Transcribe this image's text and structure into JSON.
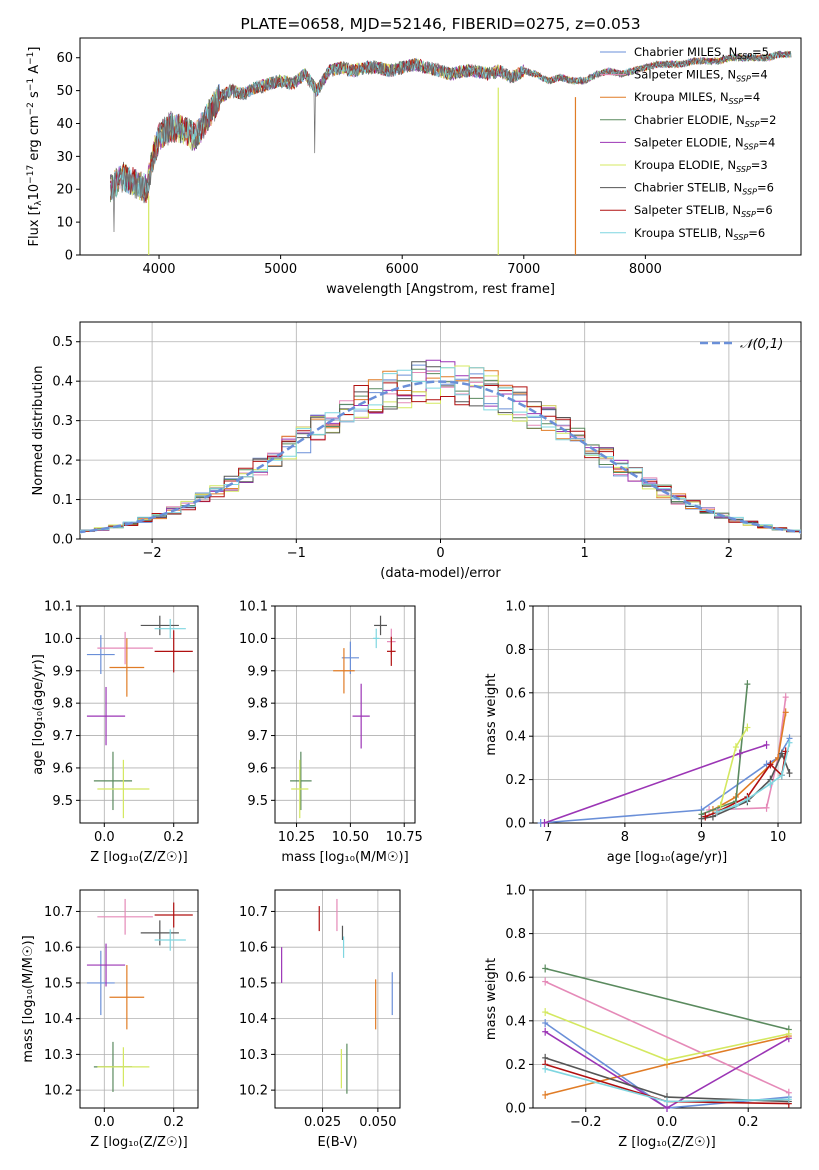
{
  "colors": {
    "chabrier_miles": "#6a8fd8",
    "salpeter_miles": "#e58ab8",
    "kroupa_miles": "#e07c26",
    "chabrier_elodie": "#5a8a5e",
    "salpeter_elodie": "#9b35b5",
    "kroupa_elodie": "#d4e860",
    "chabrier_stelib": "#555555",
    "salpeter_stelib": "#b01010",
    "kroupa_stelib": "#7fd6e0",
    "data_spectrum": "#707070",
    "grid": "#b0b0b0"
  },
  "chart_data": [
    {
      "id": "spectrum",
      "type": "line",
      "title": "PLATE=0658, MJD=52146, FIBERID=0275, z=0.053",
      "xlabel": "wavelength [Angstrom, rest frame]",
      "ylabel_parts": [
        "Flux [f",
        "λ",
        "10",
        "−17",
        " erg cm",
        "−2",
        " s",
        "−1",
        " A",
        "−1",
        "]"
      ],
      "xlim": [
        3350,
        9280
      ],
      "ylim": [
        0,
        66
      ],
      "xticks": [
        4000,
        5000,
        6000,
        7000,
        8000
      ],
      "yticks": [
        0,
        10,
        20,
        30,
        40,
        50,
        60
      ],
      "grid": false,
      "legend_placement": "top-right",
      "legend": [
        {
          "label": "Chabrier MILES, N",
          "sub": "SSP",
          "suffix": "=5",
          "color_key": "chabrier_miles"
        },
        {
          "label": "Salpeter MILES, N",
          "sub": "SSP",
          "suffix": "=4",
          "color_key": "salpeter_miles"
        },
        {
          "label": "Kroupa MILES, N",
          "sub": "SSP",
          "suffix": "=4",
          "color_key": "kroupa_miles"
        },
        {
          "label": "Chabrier ELODIE, N",
          "sub": "SSP",
          "suffix": "=2",
          "color_key": "chabrier_elodie"
        },
        {
          "label": "Salpeter ELODIE, N",
          "sub": "SSP",
          "suffix": "=4",
          "color_key": "salpeter_elodie"
        },
        {
          "label": "Kroupa ELODIE, N",
          "sub": "SSP",
          "suffix": "=3",
          "color_key": "kroupa_elodie"
        },
        {
          "label": "Chabrier STELIB, N",
          "sub": "SSP",
          "suffix": "=6",
          "color_key": "chabrier_stelib"
        },
        {
          "label": "Salpeter STELIB, N",
          "sub": "SSP",
          "suffix": "=6",
          "color_key": "salpeter_stelib"
        },
        {
          "label": "Kroupa STELIB, N",
          "sub": "SSP",
          "suffix": "=6",
          "color_key": "kroupa_stelib"
        }
      ],
      "envelope": {
        "x": [
          3600,
          3700,
          3800,
          3900,
          3950,
          4000,
          4100,
          4200,
          4300,
          4400,
          4500,
          4600,
          4700,
          4800,
          4900,
          5000,
          5100,
          5200,
          5300,
          5400,
          5500,
          5600,
          5700,
          5800,
          5900,
          6000,
          6100,
          6200,
          6300,
          6400,
          6500,
          6600,
          6700,
          6800,
          6900,
          7000,
          7100,
          7200,
          7300,
          7400,
          7500,
          7600,
          7700,
          7800,
          7900,
          8000,
          8100,
          8200,
          8300,
          8400,
          8500,
          8600,
          8700,
          8800,
          8900,
          9000,
          9100,
          9200
        ],
        "y": [
          20,
          24,
          22,
          20,
          30,
          36,
          39,
          38,
          36,
          42,
          48,
          50,
          49,
          51,
          52,
          53,
          52,
          55,
          50,
          56,
          57,
          56,
          57,
          57,
          56,
          57,
          58,
          57,
          56,
          55,
          56,
          56,
          55,
          56,
          54,
          56,
          55,
          53,
          54,
          53,
          53,
          55,
          56,
          55,
          56,
          57,
          58,
          58,
          58,
          59,
          59,
          59,
          60,
          60,
          60,
          60,
          61,
          61
        ]
      }
    },
    {
      "id": "residuals",
      "type": "step",
      "xlabel": "(data-model)/error",
      "ylabel": "Normed distribution",
      "xlim": [
        -2.5,
        2.5
      ],
      "ylim": [
        0,
        0.55
      ],
      "xticks": [
        -2,
        -1,
        0,
        1,
        2
      ],
      "xticklabels": [
        "−2",
        "−1",
        "0",
        "1",
        "2"
      ],
      "yticks": [
        0.0,
        0.1,
        0.2,
        0.3,
        0.4,
        0.5
      ],
      "yticklabels": [
        "0.0",
        "0.1",
        "0.2",
        "0.3",
        "0.4",
        "0.5"
      ],
      "grid": true,
      "legend_placement": "top-right",
      "legend_label": "𝒩(0,1)",
      "bin_width": 0.1
    },
    {
      "id": "age_vs_Z",
      "type": "errorbar",
      "xlabel": "Z [log₁₀(Z/Z☉)]",
      "ylabel": "age  [log₁₀(age/yr)]",
      "xlim": [
        -0.07,
        0.27
      ],
      "ylim": [
        9.43,
        10.1
      ],
      "xticks": [
        0.0,
        0.2
      ],
      "xticklabels": [
        "0.0",
        "0.2"
      ],
      "yticks": [
        9.5,
        9.6,
        9.7,
        9.8,
        9.9,
        10.0,
        10.1
      ],
      "yticklabels": [
        "9.5",
        "9.6",
        "9.7",
        "9.8",
        "9.9",
        "10.0",
        "10.1"
      ],
      "grid": true,
      "points": [
        {
          "c": "chabrier_miles",
          "x": -0.01,
          "y": 9.95,
          "xe": 0.04,
          "ye": 0.06
        },
        {
          "c": "salpeter_miles",
          "x": 0.06,
          "y": 9.97,
          "xe": 0.08,
          "ye": 0.05
        },
        {
          "c": "kroupa_miles",
          "x": 0.065,
          "y": 9.91,
          "xe": 0.05,
          "ye": 0.09
        },
        {
          "c": "chabrier_elodie",
          "x": 0.025,
          "y": 9.56,
          "xe": 0.055,
          "ye": 0.09
        },
        {
          "c": "salpeter_elodie",
          "x": 0.005,
          "y": 9.76,
          "xe": 0.055,
          "ye": 0.09
        },
        {
          "c": "kroupa_elodie",
          "x": 0.055,
          "y": 9.535,
          "xe": 0.075,
          "ye": 0.09
        },
        {
          "c": "chabrier_stelib",
          "x": 0.16,
          "y": 10.04,
          "xe": 0.055,
          "ye": 0.03
        },
        {
          "c": "salpeter_stelib",
          "x": 0.2,
          "y": 9.96,
          "xe": 0.055,
          "ye": 0.065
        },
        {
          "c": "kroupa_stelib",
          "x": 0.19,
          "y": 10.03,
          "xe": 0.045,
          "ye": 0.03
        }
      ]
    },
    {
      "id": "age_vs_mass",
      "type": "errorbar",
      "xlabel": "mass [log₁₀(M/M☉)]",
      "ylabel": "",
      "xlim": [
        10.15,
        10.8
      ],
      "ylim": [
        9.43,
        10.1
      ],
      "xticks": [
        10.25,
        10.5,
        10.75
      ],
      "xticklabels": [
        "10.25",
        "10.50",
        "10.75"
      ],
      "yticks": [
        9.5,
        9.6,
        9.7,
        9.8,
        9.9,
        10.0,
        10.1
      ],
      "yticklabels": [
        "9.5",
        "9.6",
        "9.7",
        "9.8",
        "9.9",
        "10.0",
        "10.1"
      ],
      "grid": true,
      "points": [
        {
          "c": "chabrier_miles",
          "x": 10.5,
          "y": 9.94,
          "xe": 0.04,
          "ye": 0.05
        },
        {
          "c": "salpeter_miles",
          "x": 10.69,
          "y": 9.99,
          "xe": 0.02,
          "ye": 0.04
        },
        {
          "c": "kroupa_miles",
          "x": 10.47,
          "y": 9.9,
          "xe": 0.05,
          "ye": 0.07
        },
        {
          "c": "chabrier_elodie",
          "x": 10.27,
          "y": 9.56,
          "xe": 0.05,
          "ye": 0.09
        },
        {
          "c": "salpeter_elodie",
          "x": 10.55,
          "y": 9.76,
          "xe": 0.04,
          "ye": 0.1
        },
        {
          "c": "kroupa_elodie",
          "x": 10.265,
          "y": 9.535,
          "xe": 0.04,
          "ye": 0.09
        },
        {
          "c": "chabrier_stelib",
          "x": 10.64,
          "y": 10.04,
          "xe": 0.03,
          "ye": 0.03
        },
        {
          "c": "salpeter_stelib",
          "x": 10.69,
          "y": 9.96,
          "xe": 0.02,
          "ye": 0.045
        },
        {
          "c": "kroupa_stelib",
          "x": 10.62,
          "y": 10.0,
          "xe": 0.015,
          "ye": 0.03
        }
      ]
    },
    {
      "id": "weight_vs_age",
      "type": "line",
      "xlabel": "age  [log₁₀(age/yr)]",
      "ylabel": "mass weight",
      "xlim": [
        6.8,
        10.3
      ],
      "ylim": [
        0,
        1.0
      ],
      "xticks": [
        7,
        8,
        9,
        10
      ],
      "xticklabels": [
        "7",
        "8",
        "9",
        "10"
      ],
      "yticks": [
        0,
        0.2,
        0.4,
        0.6,
        0.8,
        1.0
      ],
      "yticklabels": [
        "0.0",
        "0.2",
        "0.4",
        "0.6",
        "0.8",
        "1.0"
      ],
      "grid": true,
      "series": [
        {
          "c": "chabrier_miles",
          "x": [
            6.9,
            9.0,
            9.85,
            10.0,
            10.15
          ],
          "y": [
            0.0,
            0.06,
            0.27,
            0.3,
            0.39
          ]
        },
        {
          "c": "salpeter_miles",
          "x": [
            9.1,
            9.85,
            10.0,
            10.1
          ],
          "y": [
            0.06,
            0.07,
            0.3,
            0.58
          ]
        },
        {
          "c": "kroupa_miles",
          "x": [
            9.15,
            9.45,
            10.0,
            10.1
          ],
          "y": [
            0.06,
            0.12,
            0.3,
            0.51
          ]
        },
        {
          "c": "chabrier_elodie",
          "x": [
            9.0,
            9.45,
            9.6
          ],
          "y": [
            0.04,
            0.1,
            0.64
          ]
        },
        {
          "c": "salpeter_elodie",
          "x": [
            6.95,
            9.5,
            9.85
          ],
          "y": [
            0.0,
            0.32,
            0.36
          ]
        },
        {
          "c": "kroupa_elodie",
          "x": [
            9.25,
            9.45,
            9.6
          ],
          "y": [
            0.08,
            0.35,
            0.44
          ]
        },
        {
          "c": "chabrier_stelib",
          "x": [
            9.0,
            9.15,
            9.6,
            9.9,
            10.05,
            10.15
          ],
          "y": [
            0.02,
            0.03,
            0.1,
            0.2,
            0.32,
            0.23
          ]
        },
        {
          "c": "salpeter_stelib",
          "x": [
            9.05,
            9.2,
            9.6,
            9.9,
            10.05,
            10.1
          ],
          "y": [
            0.03,
            0.05,
            0.12,
            0.27,
            0.22,
            0.33
          ]
        },
        {
          "c": "kroupa_stelib",
          "x": [
            9.2,
            9.45,
            9.6,
            9.9,
            10.05,
            10.15
          ],
          "y": [
            0.05,
            0.08,
            0.11,
            0.18,
            0.22,
            0.37
          ]
        }
      ]
    },
    {
      "id": "mass_vs_Z",
      "type": "errorbar",
      "xlabel": "Z [log₁₀(Z/Z☉)]",
      "ylabel": "mass [log₁₀(M/M☉)]",
      "xlim": [
        -0.07,
        0.27
      ],
      "ylim": [
        10.15,
        10.76
      ],
      "xticks": [
        0.0,
        0.2
      ],
      "xticklabels": [
        "0.0",
        "0.2"
      ],
      "yticks": [
        10.2,
        10.3,
        10.4,
        10.5,
        10.6,
        10.7
      ],
      "yticklabels": [
        "10.2",
        "10.3",
        "10.4",
        "10.5",
        "10.6",
        "10.7"
      ],
      "grid": true,
      "points": [
        {
          "c": "chabrier_miles",
          "x": -0.01,
          "y": 10.5,
          "xe": 0.04,
          "ye": 0.09
        },
        {
          "c": "salpeter_miles",
          "x": 0.06,
          "y": 10.685,
          "xe": 0.08,
          "ye": 0.05
        },
        {
          "c": "kroupa_miles",
          "x": 0.065,
          "y": 10.46,
          "xe": 0.05,
          "ye": 0.09
        },
        {
          "c": "chabrier_elodie",
          "x": 0.025,
          "y": 10.265,
          "xe": 0.055,
          "ye": 0.07
        },
        {
          "c": "salpeter_elodie",
          "x": 0.005,
          "y": 10.55,
          "xe": 0.055,
          "ye": 0.06
        },
        {
          "c": "kroupa_elodie",
          "x": 0.055,
          "y": 10.265,
          "xe": 0.075,
          "ye": 0.055
        },
        {
          "c": "chabrier_stelib",
          "x": 0.16,
          "y": 10.64,
          "xe": 0.055,
          "ye": 0.035
        },
        {
          "c": "salpeter_stelib",
          "x": 0.2,
          "y": 10.69,
          "xe": 0.055,
          "ye": 0.035
        },
        {
          "c": "kroupa_stelib",
          "x": 0.19,
          "y": 10.62,
          "xe": 0.045,
          "ye": 0.03
        }
      ]
    },
    {
      "id": "mass_vs_ebv",
      "type": "errorbar",
      "xlabel": "E(B-V)",
      "ylabel": "",
      "xlim": [
        0.0035,
        0.06
      ],
      "ylim": [
        10.15,
        10.76
      ],
      "xticks": [
        0.025,
        0.05
      ],
      "xticklabels": [
        "0.025",
        "0.050"
      ],
      "yticks": [
        10.2,
        10.3,
        10.4,
        10.5,
        10.6,
        10.7
      ],
      "yticklabels": [
        "10.2",
        "10.3",
        "10.4",
        "10.5",
        "10.6",
        "10.7"
      ],
      "grid": true,
      "points": [
        {
          "c": "chabrier_miles",
          "x": 0.0565,
          "y": 10.47,
          "xe": 0,
          "ye": 0.06
        },
        {
          "c": "salpeter_miles",
          "x": 0.0315,
          "y": 10.69,
          "xe": 0,
          "ye": 0.045
        },
        {
          "c": "kroupa_miles",
          "x": 0.049,
          "y": 10.44,
          "xe": 0,
          "ye": 0.07
        },
        {
          "c": "chabrier_elodie",
          "x": 0.036,
          "y": 10.26,
          "xe": 0,
          "ye": 0.07
        },
        {
          "c": "salpeter_elodie",
          "x": 0.0065,
          "y": 10.55,
          "xe": 0,
          "ye": 0.05
        },
        {
          "c": "kroupa_elodie",
          "x": 0.0335,
          "y": 10.26,
          "xe": 0,
          "ye": 0.055
        },
        {
          "c": "chabrier_stelib",
          "x": 0.034,
          "y": 10.64,
          "xe": 0,
          "ye": 0.02
        },
        {
          "c": "salpeter_stelib",
          "x": 0.0235,
          "y": 10.68,
          "xe": 0,
          "ye": 0.035
        },
        {
          "c": "kroupa_stelib",
          "x": 0.0345,
          "y": 10.6,
          "xe": 0,
          "ye": 0.03
        }
      ]
    },
    {
      "id": "weight_vs_Z",
      "type": "line",
      "xlabel": "Z [log₁₀(Z/Z☉)]",
      "ylabel": "mass weight",
      "xlim": [
        -0.33,
        0.33
      ],
      "ylim": [
        0,
        1.0
      ],
      "xticks": [
        -0.2,
        0.0,
        0.2
      ],
      "xticklabels": [
        "−0.2",
        "0.0",
        "0.2"
      ],
      "yticks": [
        0,
        0.2,
        0.4,
        0.6,
        0.8,
        1.0
      ],
      "yticklabels": [
        "0.0",
        "0.2",
        "0.4",
        "0.6",
        "0.8",
        "1.0"
      ],
      "grid": true,
      "series": [
        {
          "c": "chabrier_miles",
          "x": [
            -0.3,
            0.0,
            0.3
          ],
          "y": [
            0.39,
            0.0,
            0.05
          ]
        },
        {
          "c": "salpeter_miles",
          "x": [
            -0.3,
            0.3
          ],
          "y": [
            0.58,
            0.07
          ]
        },
        {
          "c": "kroupa_miles",
          "x": [
            -0.3,
            0.0,
            0.3
          ],
          "y": [
            0.06,
            0.2,
            0.33
          ]
        },
        {
          "c": "chabrier_elodie",
          "x": [
            -0.3,
            0.3
          ],
          "y": [
            0.64,
            0.36
          ]
        },
        {
          "c": "salpeter_elodie",
          "x": [
            -0.3,
            0.0,
            0.3
          ],
          "y": [
            0.35,
            0.0,
            0.32
          ]
        },
        {
          "c": "kroupa_elodie",
          "x": [
            -0.3,
            0.0,
            0.3
          ],
          "y": [
            0.44,
            0.22,
            0.34
          ]
        },
        {
          "c": "chabrier_stelib",
          "x": [
            -0.3,
            0.0,
            0.3
          ],
          "y": [
            0.23,
            0.05,
            0.03
          ]
        },
        {
          "c": "salpeter_stelib",
          "x": [
            -0.3,
            0.0,
            0.3
          ],
          "y": [
            0.2,
            0.03,
            0.02
          ]
        },
        {
          "c": "kroupa_stelib",
          "x": [
            -0.3,
            0.0,
            0.3
          ],
          "y": [
            0.18,
            0.03,
            0.04
          ]
        }
      ]
    }
  ]
}
